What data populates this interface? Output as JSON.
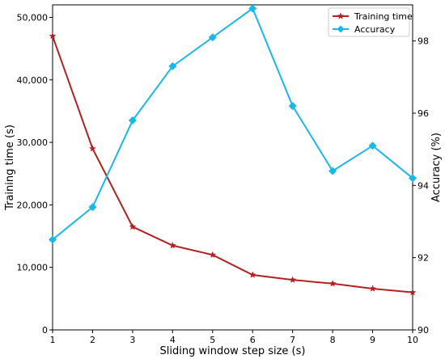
{
  "chart_data": {
    "type": "line",
    "title": "",
    "xlabel": "Sliding window step size (s)",
    "ylabel_left": "Training time (s)",
    "ylabel_right": "Accuracy (%)",
    "x": [
      1,
      2,
      3,
      4,
      5,
      6,
      7,
      8,
      9,
      10
    ],
    "xlim": [
      1,
      10
    ],
    "ylim_left": [
      0,
      52000
    ],
    "ylim_right": [
      90,
      99
    ],
    "x_ticks": [
      "1",
      "2",
      "3",
      "4",
      "5",
      "6",
      "7",
      "8",
      "9",
      "10"
    ],
    "y_ticks_left": [
      "0",
      "10,000",
      "20,000",
      "30,000",
      "40,000",
      "50,000"
    ],
    "y_ticks_right": [
      "90",
      "92",
      "94",
      "96",
      "98"
    ],
    "grid": false,
    "legend_position": "top-right",
    "series": [
      {
        "name": "Training time",
        "axis": "left",
        "color": "#b22222",
        "marker": "star",
        "values": [
          47000,
          29000,
          16500,
          13500,
          12000,
          8800,
          8000,
          7400,
          6600,
          6000
        ]
      },
      {
        "name": "Accuracy",
        "axis": "right",
        "color": "#1ab8e8",
        "marker": "diamond",
        "values": [
          92.5,
          93.4,
          95.8,
          97.3,
          98.1,
          98.9,
          96.2,
          94.4,
          95.1,
          94.2
        ]
      }
    ]
  }
}
